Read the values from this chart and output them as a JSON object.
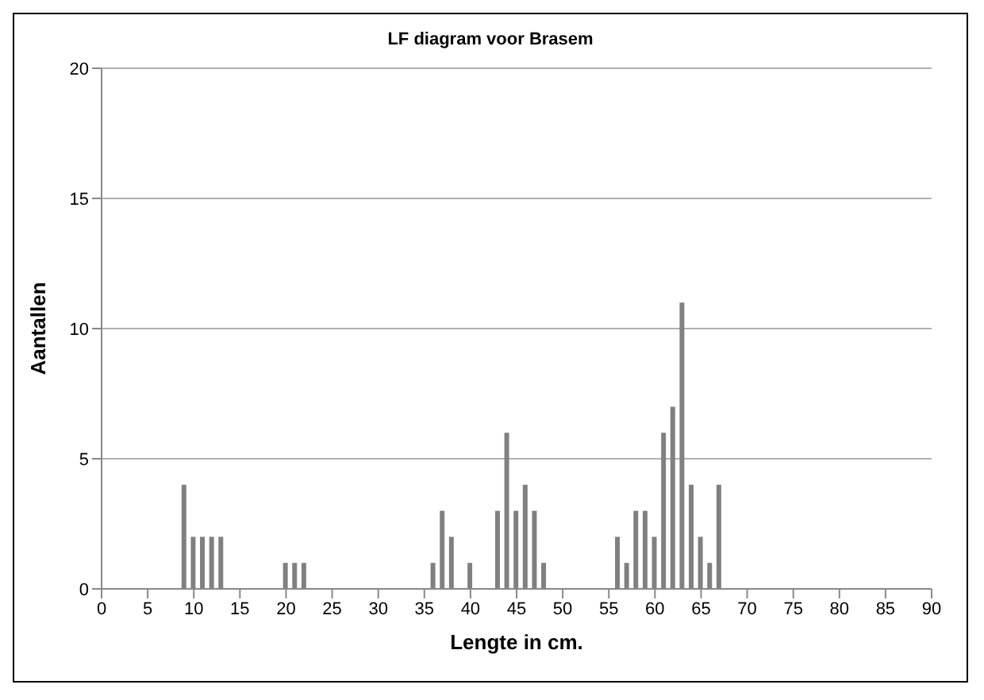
{
  "chart_data": {
    "type": "bar",
    "title": "LF diagram voor Brasem",
    "xlabel": "Lengte in cm.",
    "ylabel": "Aantallen",
    "x": [
      9,
      10,
      11,
      12,
      13,
      20,
      21,
      22,
      36,
      37,
      38,
      40,
      43,
      44,
      45,
      46,
      47,
      48,
      56,
      57,
      58,
      59,
      60,
      61,
      62,
      63,
      64,
      65,
      66,
      67
    ],
    "values": [
      4,
      2,
      2,
      2,
      2,
      1,
      1,
      1,
      1,
      3,
      2,
      1,
      3,
      6,
      3,
      4,
      3,
      1,
      2,
      1,
      3,
      3,
      2,
      6,
      7,
      11,
      4,
      2,
      1,
      4
    ],
    "color": "#808080",
    "xlim": [
      0,
      90
    ],
    "xticks": [
      0,
      5,
      10,
      15,
      20,
      25,
      30,
      35,
      40,
      45,
      50,
      55,
      60,
      65,
      70,
      75,
      80,
      85,
      90
    ],
    "ylim": [
      0,
      20
    ],
    "yticks": [
      0,
      5,
      10,
      15,
      20
    ],
    "grid": "y",
    "legend": false
  }
}
